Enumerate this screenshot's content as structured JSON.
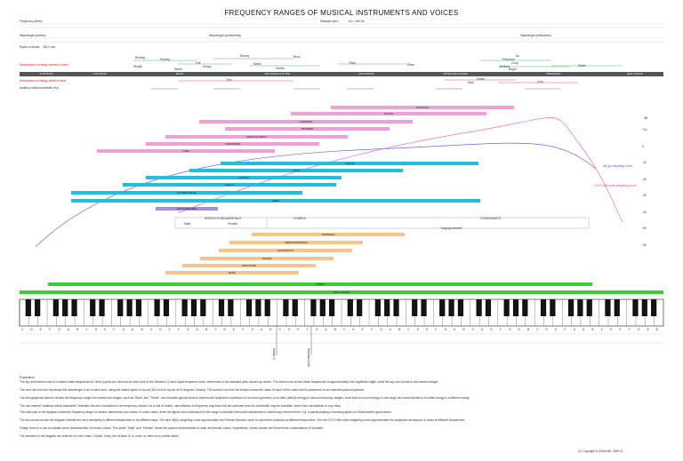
{
  "title": "FREQUENCY RANGES OF MUSICAL INSTRUMENTS AND VOICES",
  "header": {
    "frequency_label": "Frequency (Hertz)",
    "wavelength_m": "Wavelength (metres)",
    "wavelength_cm": "Wavelength (centimetres)",
    "wavelength_mm": "Wavelength (millimetres)",
    "standard_pitch": "Standard pitch",
    "standard_pitch_value": "A4 = 440 Hz",
    "speed_label": "Speed of sound:",
    "speed_value": "343.2 m/s"
  },
  "rows": {
    "energy_present": "Descriptions of energy present in band",
    "energy_deficit": "Descriptions of energy deficit in band",
    "critical_bandwidth": "Auditory critical bandwidth (Hz)"
  },
  "bands": [
    "SUB-BASS",
    "LOW BASS",
    "BASS",
    "MID-BASS/LOW MID",
    "MID-RANGE",
    "UPPER MID-RANGE",
    "PRESENCE",
    "BRILLIANCE"
  ],
  "descriptors_present": [
    "Rumbly",
    "Woolly",
    "Punchy",
    "Full",
    "Boomy",
    "Warm",
    "Honky",
    "Boxy",
    "Nasal",
    "Hollow",
    "Tinny",
    "Presence",
    "Crisp",
    "Brilliant",
    "Sizzle",
    "Bright",
    "Air",
    "Clear"
  ],
  "descriptors_deficit": [
    "Thin",
    "Sweet",
    "Cool",
    "Dark"
  ],
  "instruments": [
    {
      "name": "PICCOLO"
    },
    {
      "name": "FLUTE"
    },
    {
      "name": "CLARINET"
    },
    {
      "name": "TRUMPET"
    },
    {
      "name": "FRENCH HORN"
    },
    {
      "name": "TROMBONE"
    },
    {
      "name": "TUBA"
    },
    {
      "name": "VIOLIN"
    },
    {
      "name": "VIOLA"
    },
    {
      "name": "GUITAR"
    },
    {
      "name": "CELLO"
    },
    {
      "name": "DOUBLE BASS"
    },
    {
      "name": "HARP"
    },
    {
      "name": "KETTLEDRUMS"
    }
  ],
  "speech": {
    "fundamentals": "SPEECH FUNDAMENTALS",
    "male": "Male",
    "female": "Female",
    "vowels": "VOWELS",
    "consonants": "CONSONANTS",
    "singing_formant": "\"singing formant\""
  },
  "voices": [
    {
      "name": "SOPRANO"
    },
    {
      "name": "MEZZOSOPRANO"
    },
    {
      "name": "CONTRALTO"
    },
    {
      "name": "TENOR"
    },
    {
      "name": "BARITONE"
    },
    {
      "name": "BASS"
    }
  ],
  "keyboards": [
    {
      "name": "PIANO"
    },
    {
      "name": "PIPE ORGAN"
    }
  ],
  "curves": {
    "db_a": "dB (A) weighting curve",
    "itu": "ITU-R 468 noise weighting curve",
    "db_unit": "dB"
  },
  "db_ticks": [
    "+10",
    "0",
    "-10",
    "-20",
    "-30",
    "-40",
    "-50",
    "-60"
  ],
  "note_letters": [
    "C",
    "D",
    "E",
    "F",
    "G",
    "A",
    "B"
  ],
  "markers": {
    "middle_c": "Middle C",
    "standard_pitch": "Standard pitch"
  },
  "explanation": {
    "heading": "Explanation",
    "lines": [
      "The top and bottom rows of numbers state frequencies in Hertz (cycles per second) for each tone in the Western 12-tone equal-tempered scale, referenced to the standard pitch shown top centre. The bottom row shows these frequencies to approximately four significant digits, while the top row rounds to the nearest integer.",
      "The next row from the top shows the wavelength in air of each tone, using the stated speed of sound (343 m/s for dry air at 20 degrees Celsius). The second row from the bottom shows the name of each of the notes and its placement on an extended piano keyboard.",
      "The first graphical element divides the frequency range into named sub-ranges, such as \"Bass\" and \"Treble\", and includes typical terms to express the subjective impression of too much (present) or too little (deficit) energy in various frequency ranges. Note that too much energy in one range can sound similar to too little energy in a different range.",
      "The row marked \"auditory critical bandwidth\" indicates the ear's resolution in the frequency domain. As a rule of thumb, cancellations in frequency response that are narrower than the bandwidth may be inaudible, even if the cancellation is very deep.",
      "The main part of the diagram shows the frequency range of various instruments and voices. In some cases, there are lighter-color extensions to the range to indicate that some instruments or voices may extend further, e.g. a pianist playing a sounding guitar or a Bösendorfer grand piano.",
      "The two curves across the diagram indicate the ear's sensitivity to different frequencies in its different ways. The blue dB(A) weighting curve approximates the Fletcher-Munson curve for perceived loudness at different frequencies. The red ITU-R 468 noise weighting curve approximates the subjective annoyance of noise at different frequencies.",
      "Finally, there is a row to indicate some characteristics of human voices. The words \"Male\" and \"Female\" locate the speech fundamentals of male and female voices, respectively. Vowel sounds are formed from combinations of formants.",
      "The numbers in the diagram are referred to in the notes. Copies, if any, are at least 12 or more, so there is no further detail."
    ]
  },
  "copyright": "(C) Copyright & M.Bortolin, 2009-11"
}
